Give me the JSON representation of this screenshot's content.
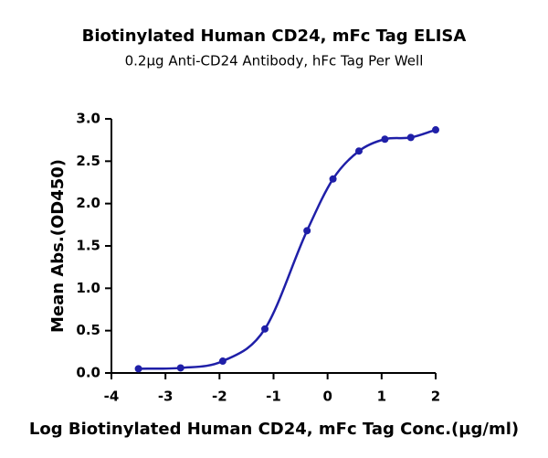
{
  "chart_data": {
    "type": "line",
    "title": "Biotinylated Human CD24, mFc Tag ELISA",
    "subtitle": "0.2µg Anti-CD24 Antibody, hFc Tag Per Well",
    "x_label": "Log Biotinylated Human CD24, mFc Tag Conc.(µg/ml)",
    "y_label": "Mean Abs.(OD450)",
    "x": [
      -3.5,
      -2.72,
      -1.94,
      -1.16,
      -0.38,
      0.1,
      0.58,
      1.06,
      1.54,
      2.0
    ],
    "series": [
      {
        "color": "#1f1fa8",
        "values": [
          0.05,
          0.06,
          0.14,
          0.52,
          1.68,
          2.29,
          2.62,
          2.76,
          2.78,
          2.87
        ]
      }
    ],
    "markers": true,
    "xlim": [
      -4,
      2
    ],
    "xticks": [
      -4,
      -3,
      -2,
      -1,
      0,
      1,
      2
    ],
    "ylim": [
      0,
      3
    ],
    "yticks": [
      {
        "value": 0,
        "label": "0.0"
      },
      {
        "value": 0.5,
        "label": "0.5"
      },
      {
        "value": 1,
        "label": "1.0"
      },
      {
        "value": 1.5,
        "label": "1.5"
      },
      {
        "value": 2,
        "label": "2.0"
      },
      {
        "value": 2.5,
        "label": "2.5"
      },
      {
        "value": 3,
        "label": "3.0"
      }
    ]
  }
}
